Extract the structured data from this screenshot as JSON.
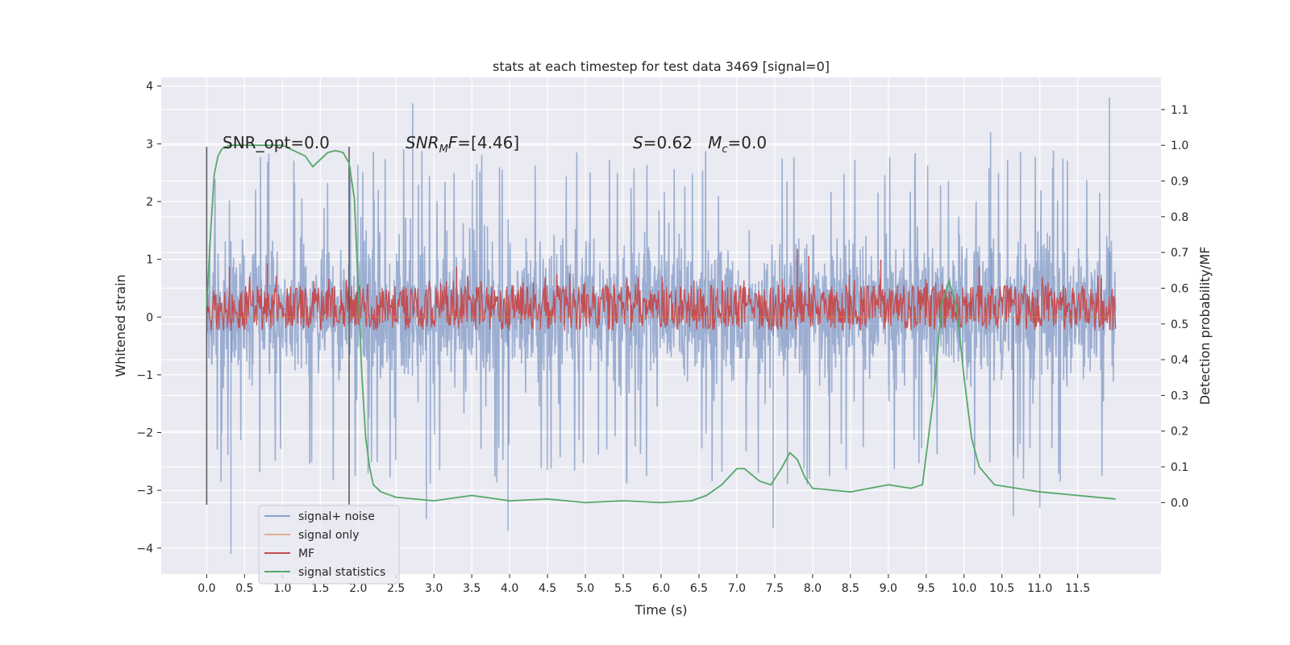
{
  "chart_data": {
    "type": "line",
    "title": "stats at each timestep for test data 3469 [signal=0]",
    "xlabel": "Time (s)",
    "ylabel_left": "Whitened strain",
    "ylabel_right": "Detection probability/MF",
    "xlim": [
      -0.6,
      12.6
    ],
    "ylim_left": [
      -4.45,
      4.15
    ],
    "ylim_right": [
      -0.2,
      1.19
    ],
    "x_ticks": [
      0.0,
      0.5,
      1.0,
      1.5,
      2.0,
      2.5,
      3.0,
      3.5,
      4.0,
      4.5,
      5.0,
      5.5,
      6.0,
      6.5,
      7.0,
      7.5,
      8.0,
      8.5,
      9.0,
      9.5,
      10.0,
      10.5,
      11.0,
      11.5
    ],
    "x_tick_labels": [
      "0.0",
      "0.5",
      "1.0",
      "1.5",
      "2.0",
      "2.5",
      "3.0",
      "3.5",
      "4.0",
      "4.5",
      "5.0",
      "5.5",
      "6.0",
      "6.5",
      "7.0",
      "7.5",
      "8.0",
      "8.5",
      "9.0",
      "9.5",
      "10.0",
      "10.5",
      "11.0",
      "11.5"
    ],
    "y_left_ticks": [
      -4,
      -3,
      -2,
      -1,
      0,
      1,
      2,
      3,
      4
    ],
    "y_left_tick_labels": [
      "−4",
      "−3",
      "−2",
      "−1",
      "0",
      "1",
      "2",
      "3",
      "4"
    ],
    "y_right_ticks": [
      0.0,
      0.1,
      0.2,
      0.3,
      0.4,
      0.5,
      0.6,
      0.7,
      0.8,
      0.9,
      1.0,
      1.1
    ],
    "y_right_tick_labels": [
      "0.0",
      "0.1",
      "0.2",
      "0.3",
      "0.4",
      "0.5",
      "0.6",
      "0.7",
      "0.8",
      "0.9",
      "1.0",
      "1.1"
    ],
    "grid": true,
    "legend_placement": "lower-left",
    "window_markers_x": [
      0.0,
      1.88
    ],
    "window_markers_ylim": [
      -3.25,
      2.95
    ],
    "annotations": [
      {
        "x": 0.2,
        "y": 3.0,
        "text": "SNR_opt=0.0"
      },
      {
        "x": 2.6,
        "y": 3.0,
        "math_base": "SNR",
        "math_sub": "M",
        "math_italic": "F",
        "text": "=[4.46]"
      },
      {
        "x": 5.6,
        "y": 3.0,
        "text": "S=0.62   M_c=0.0"
      }
    ],
    "annotation_text_2": {
      "part1": "S",
      "part2": "=0.62   ",
      "part3": "M",
      "part4": "c",
      "part5": "=0.0"
    },
    "series": [
      {
        "name": "signal+ noise",
        "color": "#4c72b0",
        "alpha": 0.5,
        "axis": "left",
        "kind": "noise",
        "x_range": [
          0.0,
          12.0
        ],
        "typical_range": [
          -2.2,
          2.4
        ],
        "extremes": [
          {
            "x": 0.32,
            "y": -4.1
          },
          {
            "x": 2.72,
            "y": 3.7
          },
          {
            "x": 2.9,
            "y": -3.5
          },
          {
            "x": 3.98,
            "y": -3.7
          },
          {
            "x": 7.48,
            "y": -3.65
          },
          {
            "x": 10.35,
            "y": 3.2
          },
          {
            "x": 10.65,
            "y": -3.45
          },
          {
            "x": 11.0,
            "y": -3.3
          },
          {
            "x": 11.92,
            "y": 3.8
          }
        ]
      },
      {
        "name": "signal only",
        "color": "#dd8452",
        "axis": "left",
        "x": [
          0.0,
          12.0
        ],
        "y": [
          0.0,
          0.0
        ]
      },
      {
        "name": "MF",
        "color": "#c44e52",
        "axis": "right",
        "kind": "band",
        "x_range": [
          0.0,
          12.0
        ],
        "base": 0.52,
        "typical_top": 0.6,
        "peaks": [
          {
            "x": 0.3,
            "y": 0.66
          },
          {
            "x": 0.8,
            "y": 0.67
          },
          {
            "x": 3.3,
            "y": 0.66
          },
          {
            "x": 7.8,
            "y": 0.71
          },
          {
            "x": 7.95,
            "y": 0.69
          },
          {
            "x": 8.9,
            "y": 0.68
          },
          {
            "x": 10.2,
            "y": 0.66
          }
        ]
      },
      {
        "name": "signal statistics",
        "color": "#55a868",
        "axis": "right",
        "x": [
          0.0,
          0.05,
          0.1,
          0.15,
          0.2,
          0.3,
          0.5,
          0.8,
          1.0,
          1.1,
          1.2,
          1.3,
          1.4,
          1.5,
          1.6,
          1.7,
          1.8,
          1.88,
          1.95,
          2.0,
          2.05,
          2.1,
          2.15,
          2.2,
          2.3,
          2.5,
          3.0,
          3.5,
          4.0,
          4.5,
          5.0,
          5.5,
          6.0,
          6.4,
          6.6,
          6.8,
          7.0,
          7.1,
          7.3,
          7.45,
          7.6,
          7.7,
          7.8,
          7.9,
          8.0,
          8.5,
          9.0,
          9.3,
          9.45,
          9.6,
          9.7,
          9.8,
          9.9,
          10.0,
          10.1,
          10.2,
          10.4,
          11.0,
          11.5,
          12.0
        ],
        "y": [
          0.55,
          0.75,
          0.92,
          0.97,
          0.99,
          1.0,
          1.0,
          1.0,
          1.0,
          0.99,
          0.98,
          0.97,
          0.94,
          0.96,
          0.98,
          0.985,
          0.98,
          0.95,
          0.85,
          0.6,
          0.35,
          0.18,
          0.1,
          0.05,
          0.03,
          0.015,
          0.005,
          0.02,
          0.005,
          0.01,
          0.0,
          0.005,
          0.0,
          0.005,
          0.02,
          0.05,
          0.095,
          0.095,
          0.06,
          0.05,
          0.1,
          0.14,
          0.12,
          0.07,
          0.04,
          0.03,
          0.05,
          0.04,
          0.05,
          0.3,
          0.55,
          0.62,
          0.55,
          0.35,
          0.18,
          0.1,
          0.05,
          0.03,
          0.02,
          0.01
        ]
      }
    ]
  }
}
